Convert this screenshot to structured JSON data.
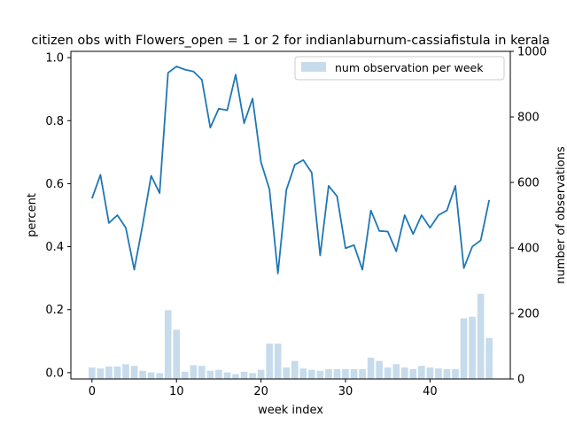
{
  "chart_data": {
    "type": "bar+line",
    "title": "citizen obs with Flowers_open = 1 or 2 for indianlaburnum-cassiafistula in kerala",
    "xlabel": "week index",
    "ylabel_left": "percent",
    "ylabel_right": "number of observations",
    "xlim": [
      -2.5,
      49.5
    ],
    "ylim_left": [
      -0.02,
      1.02
    ],
    "ylim_right": [
      0,
      1000
    ],
    "x_ticks": [
      0,
      10,
      20,
      30,
      40
    ],
    "y_left_ticks": [
      "0.0",
      "0.2",
      "0.4",
      "0.6",
      "0.8",
      "1.0"
    ],
    "y_right_ticks": [
      "0",
      "200",
      "400",
      "600",
      "800",
      "1000"
    ],
    "grid": false,
    "legend": {
      "position": "upper right",
      "entries": [
        "num observation per week"
      ]
    },
    "series": [
      {
        "name": "",
        "kind": "line",
        "axis": "left",
        "color": "#1f77b4",
        "x": [
          0,
          1,
          2,
          3,
          4,
          5,
          6,
          7,
          8,
          9,
          10,
          11,
          12,
          13,
          14,
          15,
          16,
          17,
          18,
          19,
          20,
          21,
          22,
          23,
          24,
          25,
          26,
          27,
          28,
          29,
          30,
          31,
          32,
          33,
          34,
          35,
          36,
          37,
          38,
          39,
          40,
          41,
          42,
          43,
          44,
          45,
          46,
          47
        ],
        "values": [
          0.553,
          0.628,
          0.475,
          0.5,
          0.46,
          0.327,
          0.47,
          0.625,
          0.57,
          0.952,
          0.972,
          0.962,
          0.956,
          0.93,
          0.778,
          0.838,
          0.833,
          0.946,
          0.792,
          0.87,
          0.668,
          0.582,
          0.315,
          0.58,
          0.66,
          0.675,
          0.635,
          0.372,
          0.593,
          0.56,
          0.395,
          0.405,
          0.327,
          0.515,
          0.45,
          0.448,
          0.385,
          0.5,
          0.44,
          0.5,
          0.46,
          0.5,
          0.515,
          0.593,
          0.332,
          0.4,
          0.42,
          0.548
        ]
      },
      {
        "name": "num observation per week",
        "kind": "bar",
        "axis": "right",
        "color": "#c6dbec",
        "x": [
          0,
          1,
          2,
          3,
          4,
          5,
          6,
          7,
          8,
          9,
          10,
          11,
          12,
          13,
          14,
          15,
          16,
          17,
          18,
          19,
          20,
          21,
          22,
          23,
          24,
          25,
          26,
          27,
          28,
          29,
          30,
          31,
          32,
          33,
          34,
          35,
          36,
          37,
          38,
          39,
          40,
          41,
          42,
          43,
          44,
          45,
          46,
          47
        ],
        "values": [
          35,
          32,
          38,
          38,
          45,
          40,
          25,
          20,
          18,
          210,
          150,
          22,
          42,
          40,
          25,
          28,
          20,
          15,
          22,
          18,
          28,
          108,
          108,
          35,
          55,
          32,
          28,
          25,
          30,
          30,
          30,
          30,
          30,
          65,
          55,
          35,
          45,
          35,
          30,
          40,
          35,
          32,
          30,
          30,
          185,
          190,
          260,
          125
        ]
      }
    ]
  }
}
